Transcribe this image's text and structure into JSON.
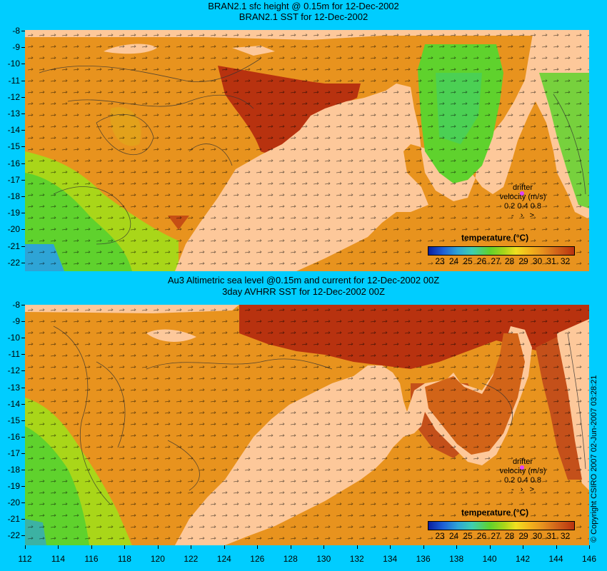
{
  "top_title_1": "BRAN2.1 sfc height @ 0.15m for 12-Dec-2002",
  "top_title_2": "BRAN2.1 SST for 12-Dec-2002",
  "bot_title_1": "Au3 Altimetric sea level  @0.15m and current for 12-Dec-2002 00Z",
  "bot_title_2": "3day AVHRR SST for 12-Dec-2002 00Z",
  "lat_labels": [
    "-8",
    "-9",
    "-10",
    "-11",
    "-12",
    "-13",
    "-14",
    "-15",
    "-16",
    "-17",
    "-18",
    "-19",
    "-20",
    "-21",
    "-22"
  ],
  "lon_labels": [
    "112",
    "114",
    "116",
    "118",
    "120",
    "122",
    "124",
    "126",
    "128",
    "130",
    "132",
    "134",
    "136",
    "138",
    "140",
    "142",
    "144",
    "146"
  ],
  "colorbar": {
    "title": "temperature  (°C)",
    "labels": [
      "23",
      "24",
      "25",
      "26",
      "27",
      "28",
      "29",
      "30",
      "31",
      "32"
    ]
  },
  "drifter": {
    "label_1": "drifter",
    "label_2": "velocity (m/s)",
    "scale_labels": "0.2  0.4  0.8"
  },
  "copyright": "© Copyright CSIRO 2007  02-Jun-2007 03:28:21",
  "colors": {
    "background": "#00cdff",
    "land": "#fdc89a",
    "warm_sea": "#e8931e",
    "hot_sea": "#b8320f",
    "cool_sea": "#5fd22d"
  }
}
